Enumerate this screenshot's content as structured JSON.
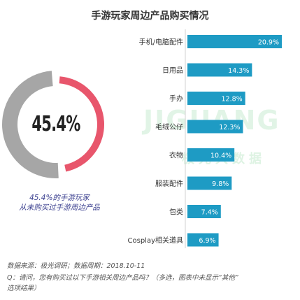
{
  "chart_data": {
    "type": "bar",
    "orientation": "horizontal",
    "title": "手游玩家周边产品购买情况",
    "categories": [
      "手机/电脑配件",
      "日用品",
      "手办",
      "毛绒公仔",
      "衣物",
      "服装配件",
      "包类",
      "Cosplay相关道具"
    ],
    "values": [
      20.9,
      14.3,
      12.8,
      12.3,
      10.4,
      9.8,
      7.4,
      6.9
    ],
    "value_labels": [
      "20.9%",
      "14.3%",
      "12.8%",
      "12.3%",
      "10.4%",
      "9.8%",
      "7.4%",
      "6.9%"
    ],
    "xlim": [
      0,
      22
    ],
    "bar_color": "#1e9bc4",
    "donut": {
      "value": 45.4,
      "label": "45.4%",
      "highlight_color": "#e8566c",
      "rest_color": "#a6a6a6",
      "caption_line1": "45.4%的手游玩家",
      "caption_line2": "从未购买过手游周边产品"
    }
  },
  "watermark": {
    "line1": "JIGUANG",
    "line2": "极光大数据"
  },
  "footer": {
    "source": "数据来源：极光调研；数据周期：2018.10-11",
    "question_line1": "Q：请问，您有购买过以下手游相关周边产品吗？（多选，图表中未显示“其他”",
    "question_line2": "选项结果）"
  }
}
